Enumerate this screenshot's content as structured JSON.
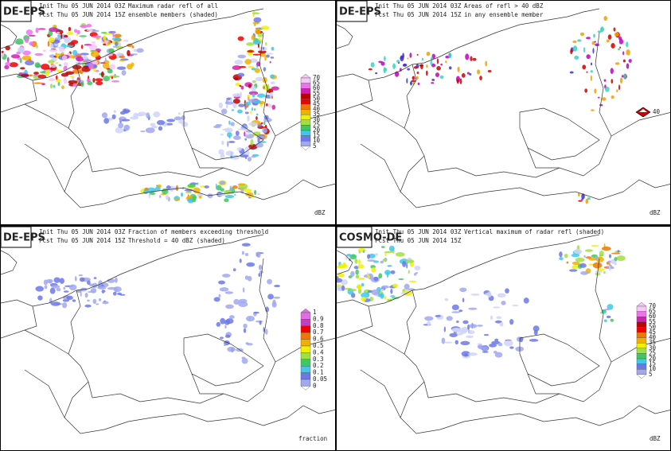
{
  "panels": [
    {
      "model": "DE-EPS",
      "init": "Init Thu 05 JUN 2014 03Z",
      "fcst": "Fcst Thu 05 JUN 2014 15Z",
      "description": [
        "Maximum radar refl of all",
        "ensemble members (shaded)"
      ],
      "legend": [
        "70",
        "65",
        "60",
        "55",
        "50",
        "45",
        "40",
        "35",
        "30",
        "25",
        "20",
        "15",
        "10",
        "5"
      ],
      "unit": "dBZ"
    },
    {
      "model": "DE-EPS",
      "init": "Init Thu 05 JUN 2014 03Z",
      "fcst": "Fcst Thu 05 JUN 2014 15Z",
      "description": [
        "Areas of refl > 40 dBZ",
        "in any ensemble member"
      ],
      "legend": [
        "40"
      ],
      "unit": "dBZ"
    },
    {
      "model": "DE-EPS",
      "init": "Init Thu 05 JUN 2014 03Z",
      "fcst": "Fcst Thu 05 JUN 2014 15Z",
      "description": [
        "Fraction of members exceeding threshold",
        "Threshold = 40 dBZ (shaded)"
      ],
      "legend": [
        "1",
        "0.9",
        "0.8",
        "0.7",
        "0.6",
        "0.5",
        "0.4",
        "0.3",
        "0.2",
        "0.1",
        "0.05",
        "0"
      ],
      "unit": "fraction"
    },
    {
      "model": "COSMO-DE",
      "init": "Init Thu 05 JUN 2014 03Z",
      "fcst": "Fcst Thu 05 JUN 2014 15Z",
      "description": [
        "Vertical maximum of radar refl (shaded)"
      ],
      "legend": [
        "70",
        "65",
        "60",
        "55",
        "50",
        "45",
        "40",
        "35",
        "30",
        "25",
        "20",
        "15",
        "10",
        "5"
      ],
      "unit": "dBZ"
    }
  ]
}
